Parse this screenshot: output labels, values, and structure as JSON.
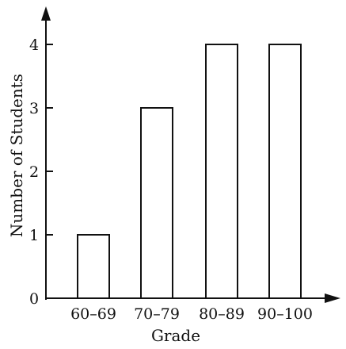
{
  "chart_data": {
    "type": "bar",
    "categories": [
      "60–69",
      "70–79",
      "80–89",
      "90–100"
    ],
    "values": [
      1,
      3,
      4,
      4
    ],
    "xlabel": "Grade",
    "ylabel": "Number of Students",
    "yticks": [
      "0",
      "1",
      "2",
      "3",
      "4"
    ],
    "ylim": [
      0,
      4
    ],
    "grid": false,
    "colors": {
      "bar_fill": "#ffffff",
      "bar_stroke": "#111111",
      "axis": "#111111"
    }
  }
}
